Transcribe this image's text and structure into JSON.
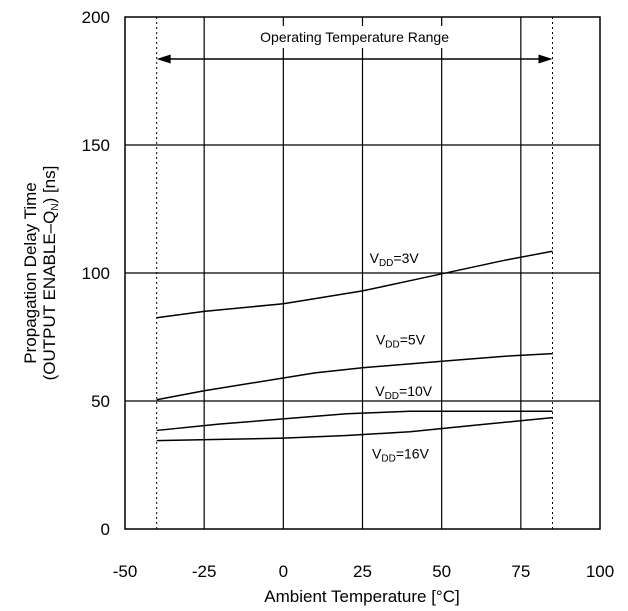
{
  "chart_data": {
    "type": "line",
    "xlabel": "Ambient Temperature [°C]",
    "ylabel_line1": "Propagation Delay Time",
    "ylabel_line2_main": "(OUTPUT ENABLE–Q",
    "ylabel_line2_sub": "N",
    "ylabel_line2_end": ") [ns]",
    "xlim": [
      -50,
      100
    ],
    "ylim": [
      0,
      200
    ],
    "xticks": [
      -50,
      -25,
      0,
      25,
      50,
      75,
      100
    ],
    "yticks": [
      0,
      50,
      100,
      150,
      200
    ],
    "x_grid": [
      -25,
      0,
      25,
      50,
      75
    ],
    "y_grid": [
      50,
      100,
      150
    ],
    "grid": true,
    "operating_range": {
      "label": "Operating Temperature Range",
      "x_min": -40,
      "x_max": 85
    },
    "series": [
      {
        "name_main": "V",
        "name_sub": "DD",
        "name_end": "=3V",
        "label_x": 35,
        "label_y": 104,
        "x": [
          -40,
          -25,
          0,
          10,
          25,
          40,
          55,
          70,
          85
        ],
        "y": [
          82.5,
          85,
          88,
          90,
          93,
          97,
          101,
          105,
          108.5
        ]
      },
      {
        "name_main": "V",
        "name_sub": "DD",
        "name_end": "=5V",
        "label_x": 37,
        "label_y": 72,
        "x": [
          -40,
          -25,
          0,
          10,
          25,
          40,
          55,
          70,
          85
        ],
        "y": [
          50.5,
          54,
          59,
          61,
          63,
          64.5,
          66,
          67.5,
          68.5
        ]
      },
      {
        "name_main": "V",
        "name_sub": "DD",
        "name_end": "=10V",
        "label_x": 38,
        "label_y": 52,
        "x": [
          -40,
          -20,
          0,
          20,
          40,
          60,
          85
        ],
        "y": [
          38.5,
          41,
          43,
          45,
          46,
          46,
          46
        ]
      },
      {
        "name_main": "V",
        "name_sub": "DD",
        "name_end": "=16V",
        "label_x": 37,
        "label_y": 27.5,
        "x": [
          -40,
          -20,
          0,
          20,
          40,
          60,
          85
        ],
        "y": [
          34.5,
          35,
          35.5,
          36.5,
          38,
          40.5,
          43.5
        ]
      }
    ]
  }
}
